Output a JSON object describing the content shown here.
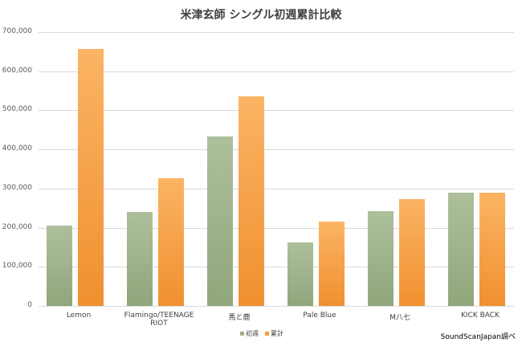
{
  "chart_data": {
    "type": "bar",
    "title": "米津玄師 シングル初週累計比較",
    "xlabel": "",
    "ylabel": "",
    "ylim": [
      0,
      700000
    ],
    "yticks": [
      "0",
      "100,000",
      "200,000",
      "300,000",
      "400,000",
      "500,000",
      "600,000",
      "700,000"
    ],
    "grid": true,
    "legend_position": "bottom",
    "categories": [
      "Lemon",
      "Flamingo/TEENAGE RIOT",
      "馬と鹿",
      "Pale Blue",
      "M八七",
      "KICK BACK"
    ],
    "series": [
      {
        "name": "初週",
        "color": "#9caf88",
        "values": [
          205000,
          240000,
          433000,
          162000,
          242000,
          290000
        ]
      },
      {
        "name": "累計",
        "color": "#f5a040",
        "values": [
          657000,
          327000,
          536000,
          216000,
          273000,
          290000
        ]
      }
    ],
    "annotation": "SoundScanJapan調べ"
  }
}
